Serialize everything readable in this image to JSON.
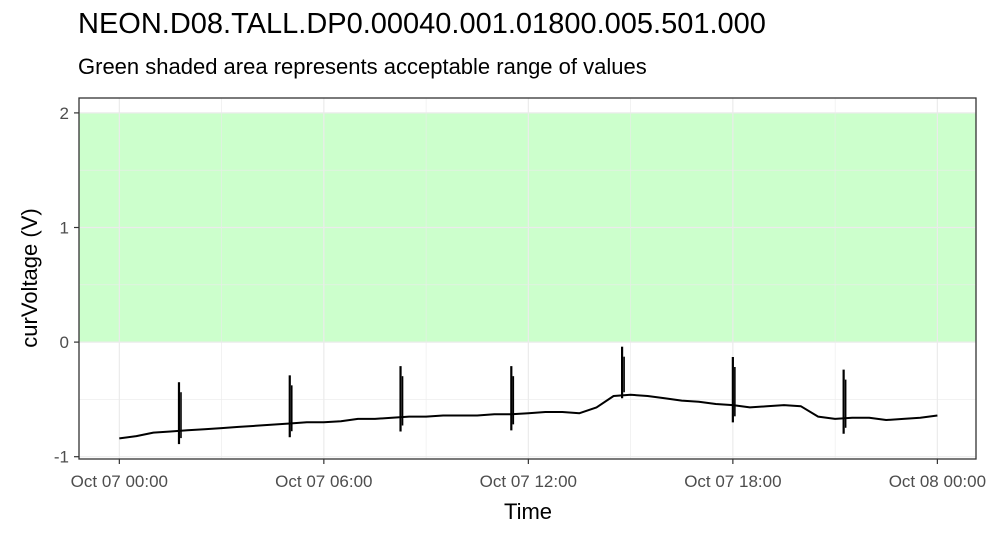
{
  "chart_data": {
    "type": "line",
    "title": "NEON.D08.TALL.DP0.00040.001.01800.005.501.000",
    "subtitle": "Green shaded area represents acceptable range of values",
    "xlabel": "Time",
    "ylabel": "curVoltage (V)",
    "x_ticks": [
      "Oct 07 00:00",
      "Oct 07 06:00",
      "Oct 07 12:00",
      "Oct 07 18:00",
      "Oct 08 00:00"
    ],
    "y_ticks": [
      "-1",
      "0",
      "1",
      "2"
    ],
    "xlim": [
      "2023-10-06 22:49",
      "2023-10-08 01:08"
    ],
    "ylim": [
      -1.02,
      2.13
    ],
    "acceptable_range": {
      "min": 0,
      "max": 2,
      "color": "#ccffcc"
    },
    "series_color": "#000000",
    "grid": true,
    "series": [
      {
        "x": [
          "Oct 07 00:00",
          "Oct 07 00:30",
          "Oct 07 01:00",
          "Oct 07 01:30",
          "Oct 07 02:00",
          "Oct 07 02:30",
          "Oct 07 03:00",
          "Oct 07 03:30",
          "Oct 07 04:00",
          "Oct 07 04:30",
          "Oct 07 05:00",
          "Oct 07 05:30",
          "Oct 07 06:00",
          "Oct 07 06:30",
          "Oct 07 07:00",
          "Oct 07 07:30",
          "Oct 07 08:00",
          "Oct 07 08:30",
          "Oct 07 09:00",
          "Oct 07 09:30",
          "Oct 07 10:00",
          "Oct 07 10:30",
          "Oct 07 11:00",
          "Oct 07 11:30",
          "Oct 07 12:00",
          "Oct 07 12:30",
          "Oct 07 13:00",
          "Oct 07 13:30",
          "Oct 07 14:00",
          "Oct 07 14:30",
          "Oct 07 15:00",
          "Oct 07 15:30",
          "Oct 07 16:00",
          "Oct 07 16:30",
          "Oct 07 17:00",
          "Oct 07 17:30",
          "Oct 07 18:00",
          "Oct 07 18:30",
          "Oct 07 19:00",
          "Oct 07 19:30",
          "Oct 07 20:00",
          "Oct 07 20:30",
          "Oct 07 21:00",
          "Oct 07 21:30",
          "Oct 07 22:00",
          "Oct 07 22:30",
          "Oct 07 23:00",
          "Oct 07 23:30",
          "Oct 08 00:00"
        ],
        "y": [
          -0.84,
          -0.82,
          -0.79,
          -0.78,
          -0.77,
          -0.76,
          -0.75,
          -0.74,
          -0.73,
          -0.72,
          -0.71,
          -0.7,
          -0.7,
          -0.69,
          -0.67,
          -0.67,
          -0.66,
          -0.65,
          -0.65,
          -0.64,
          -0.64,
          -0.64,
          -0.63,
          -0.63,
          -0.62,
          -0.61,
          -0.61,
          -0.62,
          -0.57,
          -0.47,
          -0.46,
          -0.47,
          -0.49,
          -0.51,
          -0.52,
          -0.54,
          -0.55,
          -0.57,
          -0.56,
          -0.55,
          -0.56,
          -0.65,
          -0.67,
          -0.66,
          -0.66,
          -0.68,
          -0.67,
          -0.66,
          -0.64
        ]
      }
    ],
    "spikes": [
      {
        "x": "Oct 07 01:45",
        "high": -0.35,
        "low": -0.89
      },
      {
        "x": "Oct 07 05:00",
        "high": -0.29,
        "low": -0.83
      },
      {
        "x": "Oct 07 08:15",
        "high": -0.21,
        "low": -0.78
      },
      {
        "x": "Oct 07 11:30",
        "high": -0.21,
        "low": -0.77
      },
      {
        "x": "Oct 07 14:45",
        "high": -0.04,
        "low": -0.49
      },
      {
        "x": "Oct 07 18:00",
        "high": -0.13,
        "low": -0.7
      },
      {
        "x": "Oct 07 21:15",
        "high": -0.24,
        "low": -0.8
      }
    ]
  }
}
